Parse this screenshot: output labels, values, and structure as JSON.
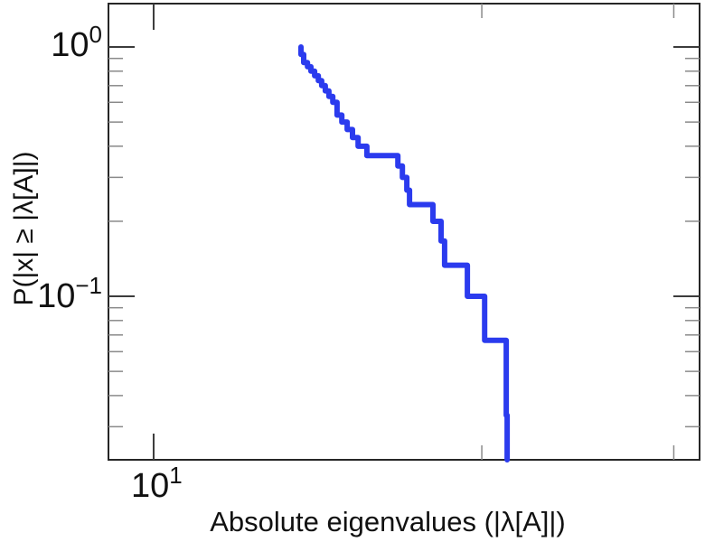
{
  "figure": {
    "background": "#ffffff",
    "curve_color": "#2b3bee",
    "frame_color": "#262626",
    "major_tick_color": "#3c3c3c",
    "minor_tick_color": "#8a8a8a"
  },
  "labels": {
    "xlabel": "Absolute eigenvalues (|λ[A]|)",
    "ylabel": "P(|x| ≥ |λ[A]|)",
    "xtick_major": {
      "base": "10",
      "exp": "1"
    },
    "ytick_top": {
      "base": "10",
      "exp": "0"
    },
    "ytick_bottom": {
      "base": "10",
      "exp": "−1"
    }
  },
  "chart_data": {
    "type": "line",
    "subtype": "empirical-ccdf-staircase",
    "title": "",
    "xlabel": "Absolute eigenvalues (|λ[A]|)",
    "ylabel": "P(|x| ≥ |λ[A]|)",
    "xscale": "log",
    "yscale": "log",
    "xlim": [
      9.09,
      31.68
    ],
    "ylim": [
      0.0221,
      1.493
    ],
    "x_ticks_major": [
      10
    ],
    "x_ticks_minor": [
      20,
      30
    ],
    "y_ticks_major": [
      1,
      0.1
    ],
    "y_ticks_minor": [
      0.9,
      0.8,
      0.7,
      0.6,
      0.5,
      0.4,
      0.3,
      0.2,
      0.09,
      0.08,
      0.07,
      0.06,
      0.05,
      0.04,
      0.03
    ],
    "grid": false,
    "legend": null,
    "n_samples": 30,
    "eigenvalue_magnitudes": [
      13.65,
      13.65,
      13.73,
      13.73,
      13.84,
      13.94,
      14.05,
      14.16,
      14.26,
      14.37,
      14.48,
      14.6,
      14.73,
      14.73,
      14.88,
      15.05,
      15.22,
      15.4,
      15.69,
      16.75,
      16.91,
      17.07,
      17.17,
      18.04,
      18.35,
      18.49,
      19.4,
      20.12,
      21.06,
      21.1
    ],
    "ccdf_note": "P(|x| >= v) = (count of eigenvalues >= v) / 30; curve drops to 0 at largest eigenvalue"
  }
}
